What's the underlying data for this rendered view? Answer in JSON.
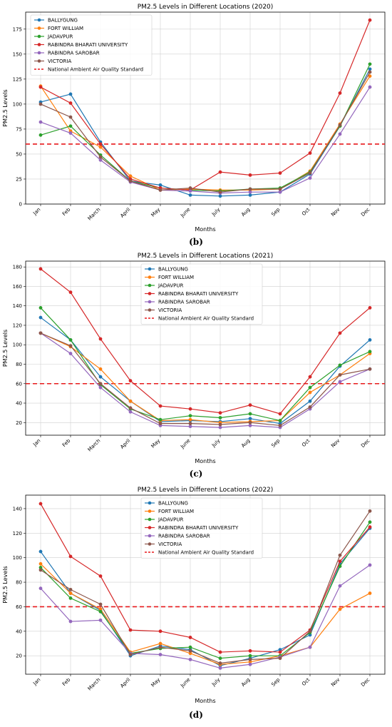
{
  "colors": {
    "BALLYGUNG": "#1f77b4",
    "FORT WILLIAM": "#ff7f0e",
    "JADAVPUR": "#2ca02c",
    "RABINDRA BHARATI UNIVERSITY": "#d62728",
    "RABINDRA SAROBAR": "#9467bd",
    "VICTORIA": "#8c564b",
    "standard": "#e8191b"
  },
  "chart_data": [
    {
      "type": "line",
      "panel_label": "(b)",
      "title": "PM2.5 Levels in Different Locations (2020)",
      "xlabel": "Months",
      "ylabel": "PM2.5 Levels",
      "categories": [
        "Jan",
        "Feb",
        "March",
        "April",
        "May",
        "June",
        "July",
        "Aug",
        "Sep",
        "Oct",
        "Nov",
        "Dec"
      ],
      "ylim": [
        0,
        192
      ],
      "yticks": [
        0,
        25,
        50,
        75,
        100,
        125,
        150,
        175
      ],
      "grid": true,
      "legend_position": "top-left",
      "series": [
        {
          "name": "BALLYGUNG",
          "values": [
            102,
            110,
            62,
            23,
            19,
            9,
            8,
            9,
            12,
            30,
            78,
            135
          ]
        },
        {
          "name": "FORT WILLIAM",
          "values": [
            118,
            73,
            57,
            28,
            14,
            15,
            14,
            14,
            15,
            33,
            80,
            128
          ]
        },
        {
          "name": "JADAVPUR",
          "values": [
            69,
            78,
            49,
            23,
            16,
            14,
            13,
            15,
            16,
            32,
            78,
            140
          ]
        },
        {
          "name": "RABINDRA BHARATI UNIVERSITY",
          "values": [
            117,
            101,
            60,
            25,
            16,
            14,
            32,
            29,
            31,
            51,
            111,
            184
          ]
        },
        {
          "name": "RABINDRA SAROBAR",
          "values": [
            82,
            71,
            44,
            22,
            14,
            13,
            11,
            12,
            12,
            26,
            70,
            117
          ]
        },
        {
          "name": "VICTORIA",
          "values": [
            100,
            87,
            47,
            23,
            14,
            16,
            12,
            15,
            15,
            31,
            79,
            132
          ]
        }
      ],
      "reference_line": {
        "name": "National Ambient Air Quality Standard",
        "value": 60
      }
    },
    {
      "type": "line",
      "panel_label": "(c)",
      "title": "PM2.5 Levels in Different Locations (2021)",
      "xlabel": "Months",
      "ylabel": "PM2.5 Levels",
      "categories": [
        "Jan",
        "Feb",
        "March",
        "April",
        "May",
        "June",
        "July",
        "Aug",
        "Sep",
        "Oct",
        "Nov",
        "Dec"
      ],
      "ylim": [
        7,
        186
      ],
      "yticks": [
        20,
        40,
        60,
        80,
        100,
        120,
        140,
        160,
        180
      ],
      "grid": true,
      "legend_position": "top-center",
      "series": [
        {
          "name": "BALLYGUNG",
          "values": [
            128,
            105,
            67,
            42,
            21,
            22,
            21,
            24,
            19,
            42,
            78,
            105
          ]
        },
        {
          "name": "FORT WILLIAM",
          "values": [
            112,
            98,
            75,
            42,
            22,
            23,
            20,
            21,
            22,
            51,
            69,
            91
          ]
        },
        {
          "name": "JADAVPUR",
          "values": [
            138,
            105,
            59,
            34,
            23,
            27,
            25,
            29,
            22,
            56,
            79,
            93
          ]
        },
        {
          "name": "RABINDRA BHARATI UNIVERSITY",
          "values": [
            178,
            154,
            106,
            63,
            37,
            34,
            30,
            38,
            29,
            67,
            112,
            138
          ]
        },
        {
          "name": "RABINDRA SAROBAR",
          "values": [
            112,
            91,
            56,
            31,
            17,
            16,
            15,
            17,
            15,
            34,
            62,
            75
          ]
        },
        {
          "name": "VICTORIA",
          "values": [
            112,
            99,
            60,
            35,
            19,
            19,
            18,
            20,
            17,
            36,
            69,
            75
          ]
        }
      ],
      "reference_line": {
        "name": "National Ambient Air Quality Standard",
        "value": 60
      }
    },
    {
      "type": "line",
      "panel_label": "(d)",
      "title": "PM2.5 Levels in Different Locations (2022)",
      "xlabel": "Months",
      "ylabel": "PM2.5 Levels",
      "categories": [
        "Jan",
        "Feb",
        "March",
        "April",
        "May",
        "June",
        "July",
        "Aug",
        "Sep",
        "Oct",
        "Nov",
        "Dec"
      ],
      "ylim": [
        5,
        151
      ],
      "yticks": [
        20,
        40,
        60,
        80,
        100,
        120,
        140
      ],
      "grid": true,
      "legend_position": "top-center",
      "series": [
        {
          "name": "BALLYGUNG",
          "values": [
            105,
            71,
            57,
            20,
            28,
            25,
            12,
            18,
            25,
            37,
            95,
            124
          ]
        },
        {
          "name": "FORT WILLIAM",
          "values": [
            95,
            71,
            58,
            23,
            30,
            22,
            13,
            15,
            20,
            27,
            58,
            71
          ]
        },
        {
          "name": "JADAVPUR",
          "values": [
            92,
            67,
            56,
            22,
            26,
            27,
            18,
            20,
            20,
            39,
            93,
            129
          ]
        },
        {
          "name": "RABINDRA BHARATI UNIVERSITY",
          "values": [
            144,
            101,
            85,
            41,
            40,
            35,
            23,
            24,
            23,
            41,
            97,
            125
          ]
        },
        {
          "name": "RABINDRA SAROBAR",
          "values": [
            75,
            48,
            49,
            22,
            21,
            17,
            10,
            13,
            19,
            27,
            77,
            94
          ]
        },
        {
          "name": "VICTORIA",
          "values": [
            90,
            74,
            62,
            21,
            27,
            24,
            14,
            17,
            18,
            40,
            102,
            138
          ]
        }
      ],
      "reference_line": {
        "name": "National Ambient Air Quality Standard",
        "value": 60
      }
    }
  ]
}
